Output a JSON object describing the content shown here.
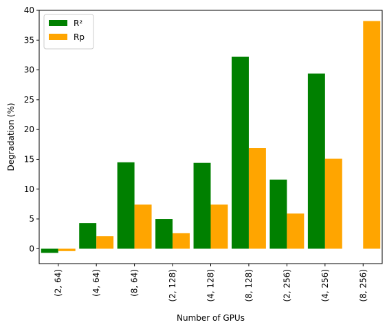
{
  "chart_data": {
    "type": "bar",
    "categories": [
      "(2, 64)",
      "(4, 64)",
      "(8, 64)",
      "(2, 128)",
      "(4, 128)",
      "(8, 128)",
      "(2, 256)",
      "(4, 256)",
      "(8, 256)"
    ],
    "series": [
      {
        "name": "R²",
        "color": "#008000",
        "values": [
          -0.7,
          4.3,
          14.5,
          5.0,
          14.4,
          32.2,
          11.6,
          29.4,
          0
        ]
      },
      {
        "name": "Rp",
        "color": "#ffa500",
        "values": [
          -0.4,
          2.1,
          7.4,
          2.6,
          7.4,
          16.9,
          5.9,
          15.1,
          38.2
        ]
      }
    ],
    "xlabel": "Number of GPUs",
    "ylabel": "Degradation (%)",
    "ylim": [
      -2.5,
      40
    ],
    "yticks": [
      0,
      5,
      10,
      15,
      20,
      25,
      30,
      35,
      40
    ],
    "legend_position": "top-left",
    "grid": false
  }
}
